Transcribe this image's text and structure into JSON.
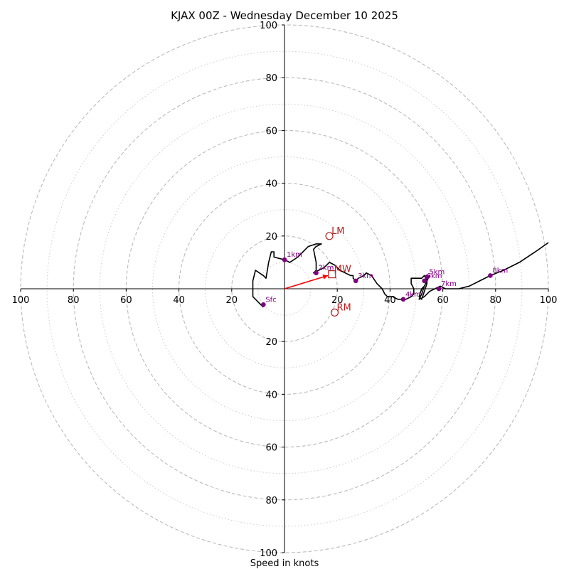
{
  "chart_data": {
    "type": "hodograph",
    "title": "KJAX 00Z - Wednesday December 10 2025",
    "xlabel": "Speed in knots",
    "range_kt": 100,
    "ring_major_kt": [
      20,
      40,
      60,
      80,
      100
    ],
    "ring_minor_kt": [
      10,
      30,
      50,
      70,
      90
    ],
    "tick_labels": {
      "x_left": [
        "100",
        "80",
        "60",
        "40",
        "20"
      ],
      "x_right": [
        "20",
        "40",
        "60",
        "80",
        "100"
      ],
      "y_up": [
        "20",
        "40",
        "60",
        "80",
        "100"
      ],
      "y_down": [
        "20",
        "40",
        "60",
        "80",
        "100"
      ]
    },
    "wind_profile_uv": [
      [
        -8,
        -7
      ],
      [
        -10,
        -5
      ],
      [
        -12,
        -3
      ],
      [
        -12,
        0
      ],
      [
        -12,
        3
      ],
      [
        -11,
        7
      ],
      [
        -8,
        5
      ],
      [
        -7,
        4
      ],
      [
        -6,
        10
      ],
      [
        -5,
        14
      ],
      [
        -4,
        14
      ],
      [
        -4,
        12
      ],
      [
        0,
        11
      ],
      [
        2,
        10
      ],
      [
        5,
        12
      ],
      [
        7,
        14
      ],
      [
        9,
        16
      ],
      [
        12,
        17
      ],
      [
        14,
        17
      ],
      [
        12,
        16
      ],
      [
        11,
        15
      ],
      [
        12,
        10
      ],
      [
        12,
        7
      ],
      [
        11,
        6
      ],
      [
        13,
        7
      ],
      [
        15,
        8
      ],
      [
        17,
        10
      ],
      [
        19,
        9
      ],
      [
        21,
        7
      ],
      [
        23,
        6
      ],
      [
        25,
        5
      ],
      [
        26,
        5
      ],
      [
        26,
        4
      ],
      [
        27,
        3
      ],
      [
        28,
        4
      ],
      [
        30,
        5
      ],
      [
        31,
        6
      ],
      [
        33,
        5
      ],
      [
        35,
        2
      ],
      [
        37,
        0
      ],
      [
        38,
        -2
      ],
      [
        39,
        -3
      ],
      [
        41,
        -3
      ],
      [
        43,
        -4
      ],
      [
        46,
        -4
      ],
      [
        48,
        -3
      ],
      [
        49,
        -2
      ],
      [
        49,
        0
      ],
      [
        48,
        2
      ],
      [
        48,
        4
      ],
      [
        50,
        4
      ],
      [
        52,
        4
      ],
      [
        53,
        5
      ],
      [
        54,
        3
      ],
      [
        53,
        1
      ],
      [
        52,
        0
      ],
      [
        51,
        -3
      ],
      [
        52,
        -4
      ],
      [
        53,
        -1
      ],
      [
        54,
        2
      ],
      [
        54,
        4
      ],
      [
        55,
        5
      ],
      [
        54,
        3
      ],
      [
        53,
        1
      ],
      [
        52,
        -2
      ],
      [
        51,
        -4
      ],
      [
        53,
        -3
      ],
      [
        55,
        -1
      ],
      [
        57,
        0
      ],
      [
        59,
        1
      ],
      [
        61,
        0
      ],
      [
        63,
        0
      ],
      [
        66,
        0
      ],
      [
        70,
        1
      ],
      [
        74,
        3
      ],
      [
        78,
        5
      ],
      [
        83,
        7
      ],
      [
        89,
        10
      ],
      [
        95,
        14
      ],
      [
        100,
        17.5
      ]
    ],
    "height_markers": [
      {
        "label": "Sfc",
        "u": -8,
        "v": -6
      },
      {
        "label": "1km",
        "u": 0,
        "v": 11
      },
      {
        "label": "2km",
        "u": 12,
        "v": 6
      },
      {
        "label": "3km",
        "u": 27,
        "v": 3
      },
      {
        "label": "4km",
        "u": 45,
        "v": -4
      },
      {
        "label": "5km",
        "u": 54,
        "v": 4.5
      },
      {
        "label": "6km",
        "u": 53,
        "v": 3
      },
      {
        "label": "7km",
        "u": 58.5,
        "v": 0
      },
      {
        "label": "8km",
        "u": 78,
        "v": 5
      }
    ],
    "motions": {
      "LM": {
        "label": "LM",
        "u": 17,
        "v": 20
      },
      "RM": {
        "label": "RM",
        "u": 19,
        "v": -9
      },
      "MW": {
        "label": "MW",
        "u": 18,
        "v": 5.5
      }
    },
    "colors": {
      "profile": "#000000",
      "markers": "#800080",
      "motion": "#b22222",
      "vector": "#ff0000",
      "rings": "#bbbbbb"
    }
  }
}
